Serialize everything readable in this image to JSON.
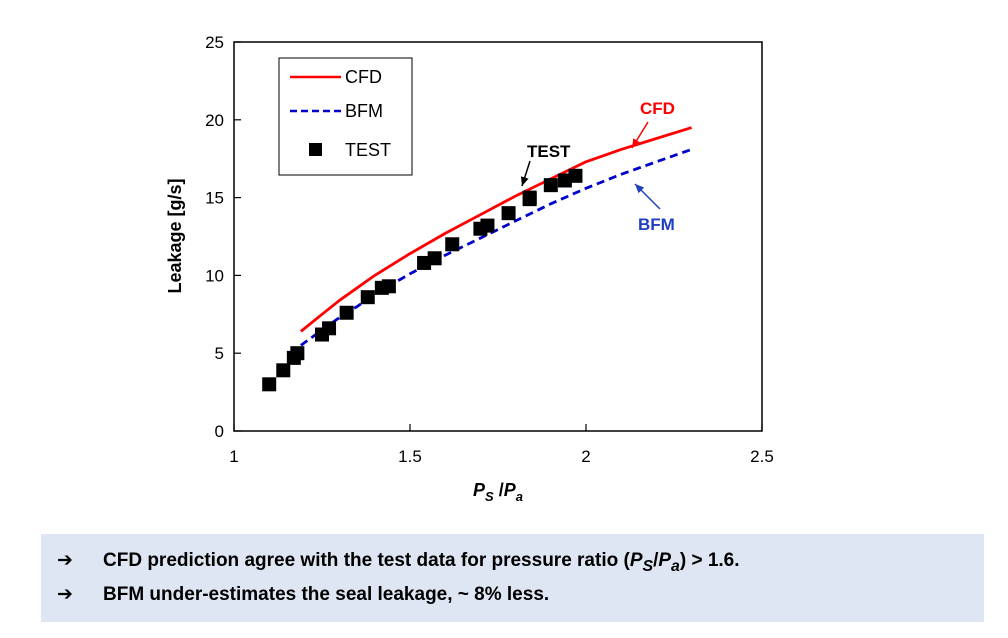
{
  "chart_data": {
    "type": "line",
    "xlabel_parts": {
      "p1": "P",
      "s1": "S",
      "mid": " /",
      "p2": "P",
      "s2": "a"
    },
    "ylabel": "Leakage [g/s]",
    "xlim": [
      1,
      2.5
    ],
    "ylim": [
      0,
      25
    ],
    "x_ticks": [
      "1",
      "1.5",
      "2",
      "2.5"
    ],
    "y_ticks": [
      "0",
      "5",
      "10",
      "15",
      "20",
      "25"
    ],
    "legend_position": "top-left",
    "grid": false,
    "series": [
      {
        "name": "CFD",
        "style": "solid-line",
        "color": "#ff0000",
        "x": [
          1.19,
          1.25,
          1.3,
          1.35,
          1.4,
          1.5,
          1.6,
          1.7,
          1.8,
          1.9,
          2.0,
          2.1,
          2.2,
          2.3
        ],
        "y": [
          6.4,
          7.5,
          8.4,
          9.2,
          10.0,
          11.4,
          12.7,
          13.9,
          15.1,
          16.2,
          17.3,
          18.1,
          18.8,
          19.5
        ]
      },
      {
        "name": "BFM",
        "style": "dashed-line",
        "color": "#0000cc",
        "x": [
          1.19,
          1.25,
          1.3,
          1.35,
          1.4,
          1.5,
          1.6,
          1.7,
          1.8,
          1.9,
          2.0,
          2.1,
          2.2,
          2.3
        ],
        "y": [
          5.5,
          6.5,
          7.3,
          8.0,
          8.8,
          10.1,
          11.3,
          12.4,
          13.5,
          14.6,
          15.6,
          16.5,
          17.3,
          18.1
        ]
      },
      {
        "name": "TEST",
        "style": "square-marker",
        "color": "#000000",
        "x": [
          1.1,
          1.14,
          1.17,
          1.18,
          1.25,
          1.27,
          1.32,
          1.38,
          1.42,
          1.44,
          1.54,
          1.57,
          1.62,
          1.7,
          1.72,
          1.78,
          1.84,
          1.84,
          1.9,
          1.94,
          1.97
        ],
        "y": [
          3.0,
          3.9,
          4.7,
          5.0,
          6.2,
          6.6,
          7.6,
          8.6,
          9.2,
          9.3,
          10.8,
          11.1,
          12.0,
          13.0,
          13.2,
          14.0,
          14.9,
          15.0,
          15.8,
          16.1,
          16.4
        ]
      }
    ],
    "annotations": [
      {
        "text": "CFD",
        "color": "#ff0000"
      },
      {
        "text": "TEST",
        "color": "#000000"
      },
      {
        "text": "BFM",
        "color": "#1f3fbf"
      }
    ]
  },
  "notes": {
    "arrow_glyph": "➔",
    "line1": {
      "text_before": "CFD prediction agree with the test data for pressure ratio (",
      "p1": "P",
      "s1": "S",
      "slash": "/",
      "p2": "P",
      "s2": "a",
      "text_after": ") > 1.6."
    },
    "line2": {
      "text": "BFM under-estimates the seal leakage, ~ 8% less."
    }
  },
  "colors": {
    "note_background": "#dde6f2"
  }
}
